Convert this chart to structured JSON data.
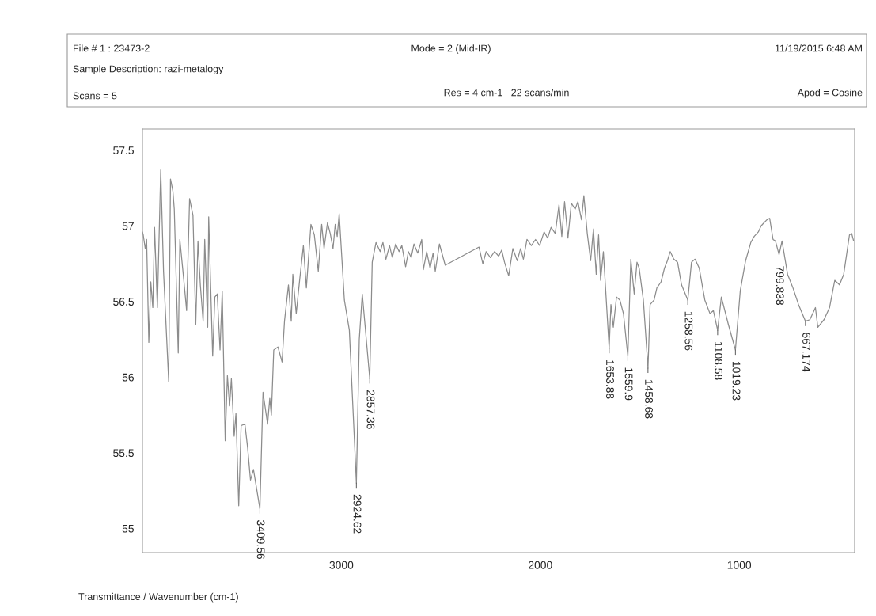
{
  "chart_data": {
    "type": "line",
    "xlabel": "Transmittance / Wavenumber (cm-1)",
    "annotations": [
      "File # 1 : 23473-2",
      "Mode = 2 (Mid-IR)",
      "11/19/2015 6:48 AM",
      "Sample Description: razi-metalogy",
      "Scans = 5",
      "Res = 4 cm-1   22 scans/min",
      "Apod = Cosine",
      {
        "text": "3409.56",
        "x": 3409.56,
        "y": 55.13
      },
      {
        "text": "2924.62",
        "x": 2924.62,
        "y": 55.3
      },
      {
        "text": "2857.36",
        "x": 2857.36,
        "y": 55.99
      },
      {
        "text": "1653.88",
        "x": 1653.88,
        "y": 56.19
      },
      {
        "text": "1559.9",
        "x": 1559.9,
        "y": 56.14
      },
      {
        "text": "1458.68",
        "x": 1458.68,
        "y": 56.06
      },
      {
        "text": "1258.56",
        "x": 1258.56,
        "y": 56.51
      },
      {
        "text": "1108.58",
        "x": 1108.58,
        "y": 56.31
      },
      {
        "text": "1019.23",
        "x": 1019.23,
        "y": 56.18
      },
      {
        "text": "799.838",
        "x": 799.838,
        "y": 56.81
      },
      {
        "text": "667.174",
        "x": 667.174,
        "y": 56.37
      }
    ],
    "series": [
      {
        "color": "#8c8c8c",
        "x": [
          4000,
          3996,
          3986,
          3979,
          3968,
          3958,
          3948,
          3939,
          3925,
          3908,
          3894,
          3868,
          3859,
          3847,
          3840,
          3820,
          3812,
          3792,
          3778,
          3763,
          3746,
          3732,
          3721,
          3709,
          3695,
          3687,
          3672,
          3667,
          3647,
          3636,
          3624,
          3610,
          3599,
          3584,
          3573,
          3562,
          3553,
          3539,
          3530,
          3516,
          3504,
          3485,
          3471,
          3457,
          3442,
          3409.56,
          3394,
          3371,
          3360,
          3352,
          3340,
          3319,
          3298,
          3286,
          3266,
          3252,
          3244,
          3227,
          3210,
          3191,
          3176,
          3153,
          3136,
          3116,
          3099,
          3087,
          3070,
          3056,
          3042,
          3031,
          3021,
          3011,
          2985,
          2960,
          2924.62,
          2910,
          2895,
          2857.36,
          2845,
          2826,
          2805,
          2791,
          2776,
          2758,
          2744,
          2727,
          2710,
          2696,
          2677,
          2663,
          2649,
          2635,
          2616,
          2596,
          2588,
          2571,
          2554,
          2539,
          2528,
          2507,
          2478,
          2308,
          2289,
          2272,
          2251,
          2230,
          2209,
          2194,
          2180,
          2159,
          2138,
          2116,
          2099,
          2085,
          2067,
          2045,
          2024,
          2003,
          1981,
          1963,
          1946,
          1925,
          1906,
          1892,
          1878,
          1861,
          1844,
          1825,
          1811,
          1793,
          1781,
          1764,
          1747,
          1733,
          1719,
          1707,
          1697,
          1683,
          1653.88,
          1645,
          1633,
          1617,
          1600,
          1582,
          1559.9,
          1545,
          1528,
          1514,
          1503,
          1482,
          1458.68,
          1448,
          1428,
          1414,
          1393,
          1376,
          1361,
          1347,
          1329,
          1310,
          1290,
          1258.56,
          1240,
          1222,
          1201,
          1173,
          1147,
          1130,
          1108.58,
          1090,
          1055,
          1019.23,
          995,
          968,
          942,
          925,
          904,
          890,
          876,
          861,
          847,
          830,
          818,
          799.838,
          785,
          757,
          730,
          702,
          667.174,
          645,
          617,
          605,
          574,
          546,
          520,
          496,
          475,
          446,
          435,
          425
        ],
        "values": [
          56.96,
          56.94,
          56.85,
          56.91,
          56.23,
          56.63,
          56.46,
          56.99,
          56.46,
          57.37,
          56.7,
          55.97,
          57.31,
          57.23,
          57.11,
          56.16,
          56.91,
          56.64,
          56.44,
          57.18,
          57.07,
          56.35,
          56.9,
          56.61,
          56.37,
          56.91,
          56.33,
          57.06,
          56.14,
          56.53,
          56.55,
          56.18,
          56.57,
          55.58,
          56.01,
          55.81,
          55.99,
          55.61,
          55.76,
          55.15,
          55.68,
          55.69,
          55.53,
          55.32,
          55.39,
          55.13,
          55.9,
          55.69,
          55.86,
          55.75,
          56.18,
          56.2,
          56.1,
          56.37,
          56.61,
          56.37,
          56.68,
          56.42,
          56.64,
          56.87,
          56.59,
          57.01,
          56.94,
          56.7,
          57.01,
          56.85,
          57.02,
          56.95,
          56.85,
          57.01,
          56.93,
          57.08,
          56.51,
          56.31,
          55.3,
          56.25,
          56.55,
          55.99,
          56.76,
          56.89,
          56.83,
          56.89,
          56.78,
          56.87,
          56.79,
          56.88,
          56.83,
          56.87,
          56.73,
          56.83,
          56.79,
          56.88,
          56.82,
          56.91,
          56.71,
          56.83,
          56.72,
          56.82,
          56.7,
          56.88,
          56.74,
          56.86,
          56.75,
          56.83,
          56.79,
          56.83,
          56.8,
          56.84,
          56.76,
          56.67,
          56.85,
          56.77,
          56.85,
          56.78,
          56.91,
          56.87,
          56.91,
          56.87,
          56.96,
          56.92,
          56.99,
          56.95,
          57.14,
          56.93,
          57.16,
          56.92,
          57.15,
          57.11,
          57.16,
          57.04,
          57.2,
          56.95,
          56.77,
          56.98,
          56.68,
          56.94,
          56.64,
          56.83,
          56.19,
          56.48,
          56.33,
          56.53,
          56.51,
          56.42,
          56.14,
          56.78,
          56.55,
          56.76,
          56.72,
          56.51,
          56.06,
          56.48,
          56.51,
          56.59,
          56.63,
          56.72,
          56.77,
          56.83,
          56.78,
          56.76,
          56.61,
          56.51,
          56.76,
          56.78,
          56.72,
          56.51,
          56.42,
          56.44,
          56.31,
          56.53,
          56.35,
          56.18,
          56.57,
          56.77,
          56.89,
          56.93,
          56.96,
          57.0,
          57.02,
          57.04,
          57.05,
          56.91,
          56.9,
          56.81,
          56.9,
          56.68,
          56.59,
          56.48,
          56.37,
          56.38,
          56.46,
          56.33,
          56.38,
          56.46,
          56.64,
          56.61,
          56.68,
          56.94,
          56.95,
          56.9
        ]
      }
    ],
    "xlim": [
      4000,
      420
    ],
    "ylim": [
      54.84,
      57.64
    ],
    "xticks": [
      3000,
      2000,
      1000
    ],
    "yticks": [
      55,
      55.5,
      56,
      56.5,
      57,
      57.5
    ],
    "grid": false,
    "legend": false,
    "marker": "none",
    "line_style": "solid"
  }
}
